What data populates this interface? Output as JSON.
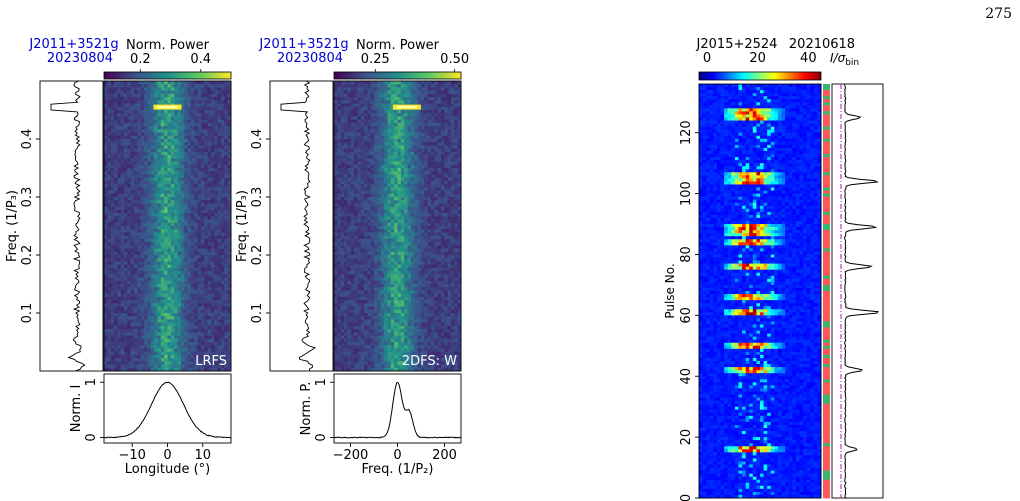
{
  "page_number": "275",
  "colors": {
    "blue_label": "#0000cc",
    "line": "#000000",
    "magenta": "#cc00cc"
  },
  "chart_data": [
    {
      "type": "heatmap",
      "panel": "lrfs",
      "pulsar": "J2011+3521g",
      "date": "20230804",
      "colorbar_label": "Norm. Power",
      "colorbar_ticks": [
        "0.2",
        "0.4"
      ],
      "colorbar_range": [
        0.08,
        0.5
      ],
      "colormap": "viridis",
      "inset_label": "LRFS",
      "ylabel": "Freq. (1/P₃)",
      "ytick_labels": [
        "0.1",
        "0.2",
        "0.3",
        "0.4"
      ],
      "yticks": [
        0.1,
        0.2,
        0.3,
        0.4
      ],
      "ylim": [
        0.0,
        0.5
      ],
      "xlim": [
        -18,
        18
      ],
      "bright_feature": {
        "x": 0.0,
        "y": 0.455
      },
      "side_spectrum": {
        "ylabel": "",
        "peaks": [
          {
            "y": 0.455,
            "strength": 1.0
          }
        ]
      },
      "profile": {
        "type": "line",
        "ylabel": "Norm. I",
        "xlabel": "Longitude (°)",
        "xticks": [
          -10,
          0,
          10
        ],
        "xtick_labels": [
          "−10",
          "0",
          "10"
        ],
        "yticks": [
          0,
          1
        ],
        "ytick_labels": [
          "0",
          "1"
        ],
        "xlim": [
          -18,
          18
        ],
        "ylim": [
          -0.1,
          1.15
        ],
        "peak_x": 0,
        "width_sigma": 4.5
      }
    },
    {
      "type": "heatmap",
      "panel": "2dfs",
      "pulsar": "J2011+3521g",
      "date": "20230804",
      "colorbar_label": "Norm. Power",
      "colorbar_ticks": [
        "0.25",
        "0.50"
      ],
      "colorbar_range": [
        0.12,
        0.52
      ],
      "colormap": "viridis",
      "inset_label": "2DFS: W",
      "ylabel": "Freq. (1/P₃)",
      "ytick_labels": [
        "0.1",
        "0.2",
        "0.3",
        "0.4"
      ],
      "yticks": [
        0.1,
        0.2,
        0.3,
        0.4
      ],
      "ylim": [
        0.0,
        0.5
      ],
      "xlim": [
        -270,
        270
      ],
      "bright_feature": {
        "x": 40,
        "y": 0.455
      },
      "side_spectrum": {
        "ylabel": "",
        "peaks": [
          {
            "y": 0.455,
            "strength": 1.0
          }
        ]
      },
      "profile": {
        "type": "line",
        "ylabel": "Norm. P.",
        "xlabel": "Freq. (1/P₂)",
        "xticks": [
          -200,
          0,
          200
        ],
        "xtick_labels": [
          "−200",
          "0",
          "200"
        ],
        "yticks": [
          0,
          1
        ],
        "ytick_labels": [
          "0",
          "1"
        ],
        "xlim": [
          -270,
          270
        ],
        "ylim": [
          -0.1,
          1.15
        ],
        "peak_x": 0
      }
    },
    {
      "type": "heatmap",
      "panel": "pulse_stack",
      "pulsar": "J2015+2524",
      "date": "20210618",
      "colorbar_ticks": [
        "0",
        "20",
        "40"
      ],
      "colorbar_range": [
        0,
        45
      ],
      "colormap": "jet",
      "snr_label": "I/σ",
      "snr_sub": "bin",
      "ylabel": "Pulse No.",
      "yticks": [
        0,
        20,
        40,
        60,
        80,
        100,
        120
      ],
      "ytick_labels": [
        "0",
        "20",
        "40",
        "60",
        "80",
        "100",
        "120"
      ],
      "ylim": [
        0,
        136
      ],
      "bright_pulses": [
        16,
        42,
        50,
        61,
        66,
        76,
        84,
        87,
        89,
        104,
        106,
        125,
        127
      ],
      "side_snr": {
        "peaks": [
          {
            "pulse": 16,
            "value": 0.3
          },
          {
            "pulse": 42,
            "value": 0.45
          },
          {
            "pulse": 61,
            "value": 0.9
          },
          {
            "pulse": 76,
            "value": 0.7
          },
          {
            "pulse": 89,
            "value": 0.8
          },
          {
            "pulse": 104,
            "value": 0.85
          },
          {
            "pulse": 125,
            "value": 0.4
          }
        ]
      }
    }
  ]
}
